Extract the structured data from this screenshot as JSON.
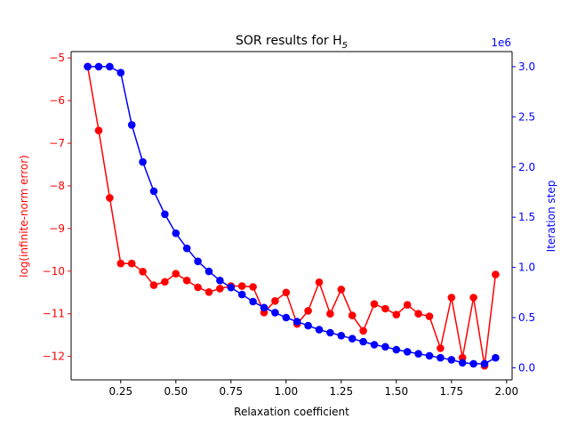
{
  "chart_data": {
    "type": "line",
    "title": "SOR results for H",
    "title_sub": "5",
    "xlabel": "Relaxation coefficient",
    "ylabel_left": "log(infinite-norm error)",
    "ylabel_right": "Iteration step",
    "right_axis_offset_label": "1e6",
    "xlim": [
      0.025,
      2.025
    ],
    "ylim_left": [
      -12.55,
      -4.85
    ],
    "ylim_right": [
      -0.12,
      3.15
    ],
    "x_ticks": [
      0.25,
      0.5,
      0.75,
      1.0,
      1.25,
      1.5,
      1.75,
      2.0
    ],
    "x_tick_labels": [
      "0.25",
      "0.50",
      "0.75",
      "1.00",
      "1.25",
      "1.50",
      "1.75",
      "2.00"
    ],
    "left_ticks": [
      -5,
      -6,
      -7,
      -8,
      -9,
      -10,
      -11,
      -12
    ],
    "left_tick_labels": [
      "−5",
      "−6",
      "−7",
      "−8",
      "−9",
      "−10",
      "−11",
      "−12"
    ],
    "right_ticks": [
      0.0,
      0.5,
      1.0,
      1.5,
      2.0,
      2.5,
      3.0
    ],
    "right_tick_labels": [
      "0.0",
      "0.5",
      "1.0",
      "1.5",
      "2.0",
      "2.5",
      "3.0"
    ],
    "x": [
      0.1,
      0.15,
      0.2,
      0.25,
      0.3,
      0.35,
      0.4,
      0.45,
      0.5,
      0.55,
      0.6,
      0.65,
      0.7,
      0.75,
      0.8,
      0.85,
      0.9,
      0.95,
      1.0,
      1.05,
      1.1,
      1.15,
      1.2,
      1.25,
      1.3,
      1.35,
      1.4,
      1.45,
      1.5,
      1.55,
      1.6,
      1.65,
      1.7,
      1.75,
      1.8,
      1.85,
      1.9,
      1.95
    ],
    "series": [
      {
        "axis": "left",
        "color": "#ff0000",
        "values": [
          -5.2,
          -6.7,
          -8.28,
          -9.82,
          -9.82,
          -10.01,
          -10.33,
          -10.25,
          -10.06,
          -10.22,
          -10.38,
          -10.49,
          -10.41,
          -10.35,
          -10.35,
          -10.37,
          -10.97,
          -10.7,
          -10.5,
          -11.24,
          -10.93,
          -10.26,
          -11.0,
          -10.43,
          -11.04,
          -11.4,
          -10.77,
          -10.88,
          -11.02,
          -10.79,
          -11.0,
          -11.06,
          -11.81,
          -10.62,
          -12.03,
          -10.62,
          -12.22,
          -10.08
        ]
      },
      {
        "axis": "right",
        "color": "#0000ff",
        "values": [
          3.0,
          3.0,
          3.0,
          2.94,
          2.42,
          2.05,
          1.76,
          1.53,
          1.34,
          1.19,
          1.06,
          0.96,
          0.87,
          0.8,
          0.73,
          0.66,
          0.6,
          0.55,
          0.5,
          0.46,
          0.42,
          0.38,
          0.35,
          0.32,
          0.29,
          0.26,
          0.23,
          0.21,
          0.18,
          0.16,
          0.14,
          0.12,
          0.1,
          0.08,
          0.05,
          0.04,
          0.04,
          0.1
        ]
      }
    ]
  }
}
